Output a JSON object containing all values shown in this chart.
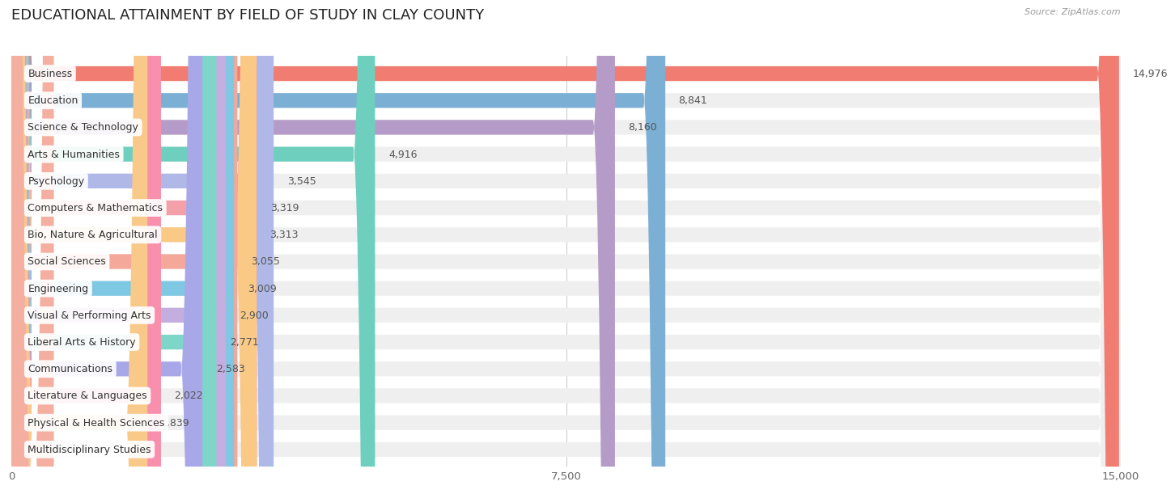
{
  "title": "EDUCATIONAL ATTAINMENT BY FIELD OF STUDY IN CLAY COUNTY",
  "source": "Source: ZipAtlas.com",
  "categories": [
    "Business",
    "Education",
    "Science & Technology",
    "Arts & Humanities",
    "Psychology",
    "Computers & Mathematics",
    "Bio, Nature & Agricultural",
    "Social Sciences",
    "Engineering",
    "Visual & Performing Arts",
    "Liberal Arts & History",
    "Communications",
    "Literature & Languages",
    "Physical & Health Sciences",
    "Multidisciplinary Studies"
  ],
  "values": [
    14976,
    8841,
    8160,
    4916,
    3545,
    3319,
    3313,
    3055,
    3009,
    2900,
    2771,
    2583,
    2022,
    1839,
    573
  ],
  "colors": [
    "#F07C72",
    "#7BAFD4",
    "#B59CC8",
    "#6ECFBE",
    "#B0B8E8",
    "#F4A0A8",
    "#F9C985",
    "#F4A89A",
    "#7EC8E3",
    "#C4AEE0",
    "#7DD6C8",
    "#A8A8E8",
    "#F78FAD",
    "#F9C98A",
    "#F4AFA0"
  ],
  "xlim": [
    0,
    15000
  ],
  "xticks": [
    0,
    7500,
    15000
  ],
  "background_color": "#ffffff",
  "bar_bg_color": "#efefef",
  "title_fontsize": 13,
  "label_fontsize": 9,
  "value_fontsize": 9
}
